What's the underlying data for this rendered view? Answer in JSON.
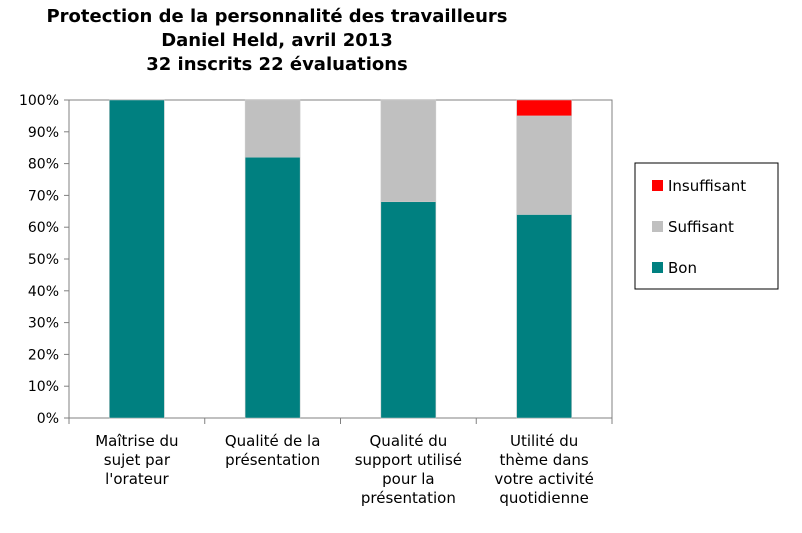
{
  "chart_data": {
    "type": "bar",
    "stacked": true,
    "title_lines": [
      "Protection de la personnalité des travailleurs",
      "Daniel Held, avril 2013",
      "32 inscrits 22 évaluations"
    ],
    "categories": [
      [
        "Maîtrise du",
        "sujet par",
        "l'orateur"
      ],
      [
        "Qualité de la",
        "présentation"
      ],
      [
        "Qualité du",
        "support utilisé",
        "pour la",
        "présentation"
      ],
      [
        "Utilité du",
        "thème dans",
        "votre activité",
        "quotidienne"
      ]
    ],
    "series": [
      {
        "name": "Bon",
        "color": "#008080",
        "values": [
          100,
          82,
          68,
          64
        ]
      },
      {
        "name": "Suffisant",
        "color": "#c0c0c0",
        "values": [
          0,
          18,
          32,
          31
        ]
      },
      {
        "name": "Insuffisant",
        "color": "#ff0000",
        "values": [
          0,
          0,
          0,
          5
        ]
      }
    ],
    "legend_order": [
      "Insuffisant",
      "Suffisant",
      "Bon"
    ],
    "ylim": [
      0,
      100
    ],
    "yticks": [
      "0%",
      "10%",
      "20%",
      "30%",
      "40%",
      "50%",
      "60%",
      "70%",
      "80%",
      "90%",
      "100%"
    ],
    "grid": false,
    "legend_position": "right"
  }
}
